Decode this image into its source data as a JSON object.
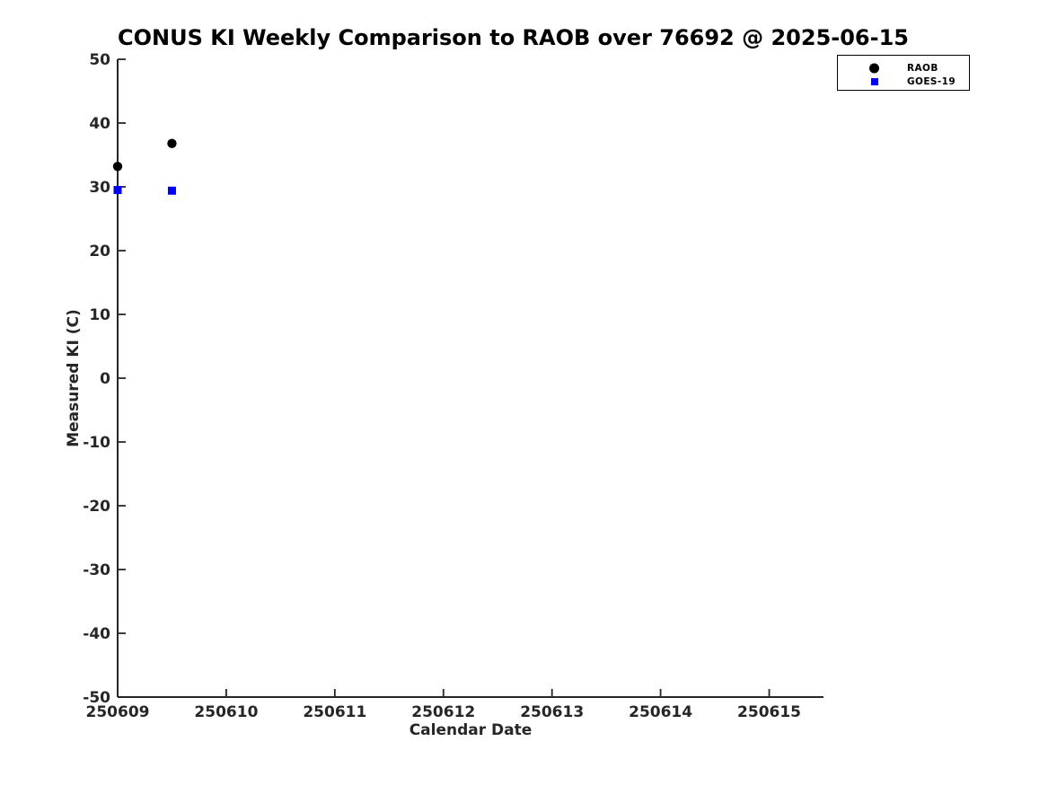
{
  "chart_data": {
    "type": "scatter",
    "title": "CONUS KI Weekly Comparison to RAOB over 76692 @ 2025-06-15",
    "xlabel": "Calendar Date",
    "ylabel": "Measured KI (C)",
    "xlim": [
      250609,
      250615.5
    ],
    "ylim": [
      -50,
      50
    ],
    "xticks": {
      "values": [
        250609,
        250610,
        250611,
        250612,
        250613,
        250614,
        250615
      ],
      "labels": [
        "250609",
        "250610",
        "250611",
        "250612",
        "250613",
        "250614",
        "250615"
      ]
    },
    "yticks": {
      "values": [
        -50,
        -40,
        -30,
        -20,
        -10,
        0,
        10,
        20,
        30,
        40,
        50
      ],
      "labels": [
        "-50",
        "-40",
        "-30",
        "-20",
        "-10",
        "0",
        "10",
        "20",
        "30",
        "40",
        "50"
      ]
    },
    "grid": false,
    "legend_position": "top-right",
    "series": [
      {
        "name": "RAOB",
        "marker": "circle",
        "color": "#000000",
        "points": [
          [
            250609.0,
            33.2
          ],
          [
            250609.5,
            36.8
          ]
        ]
      },
      {
        "name": "GOES-19",
        "marker": "square",
        "color": "#0000ff",
        "points": [
          [
            250609.0,
            29.5
          ],
          [
            250609.5,
            29.4
          ]
        ]
      }
    ],
    "colors": {
      "axis": "#262626",
      "title": "#000000",
      "background": "#ffffff"
    }
  }
}
